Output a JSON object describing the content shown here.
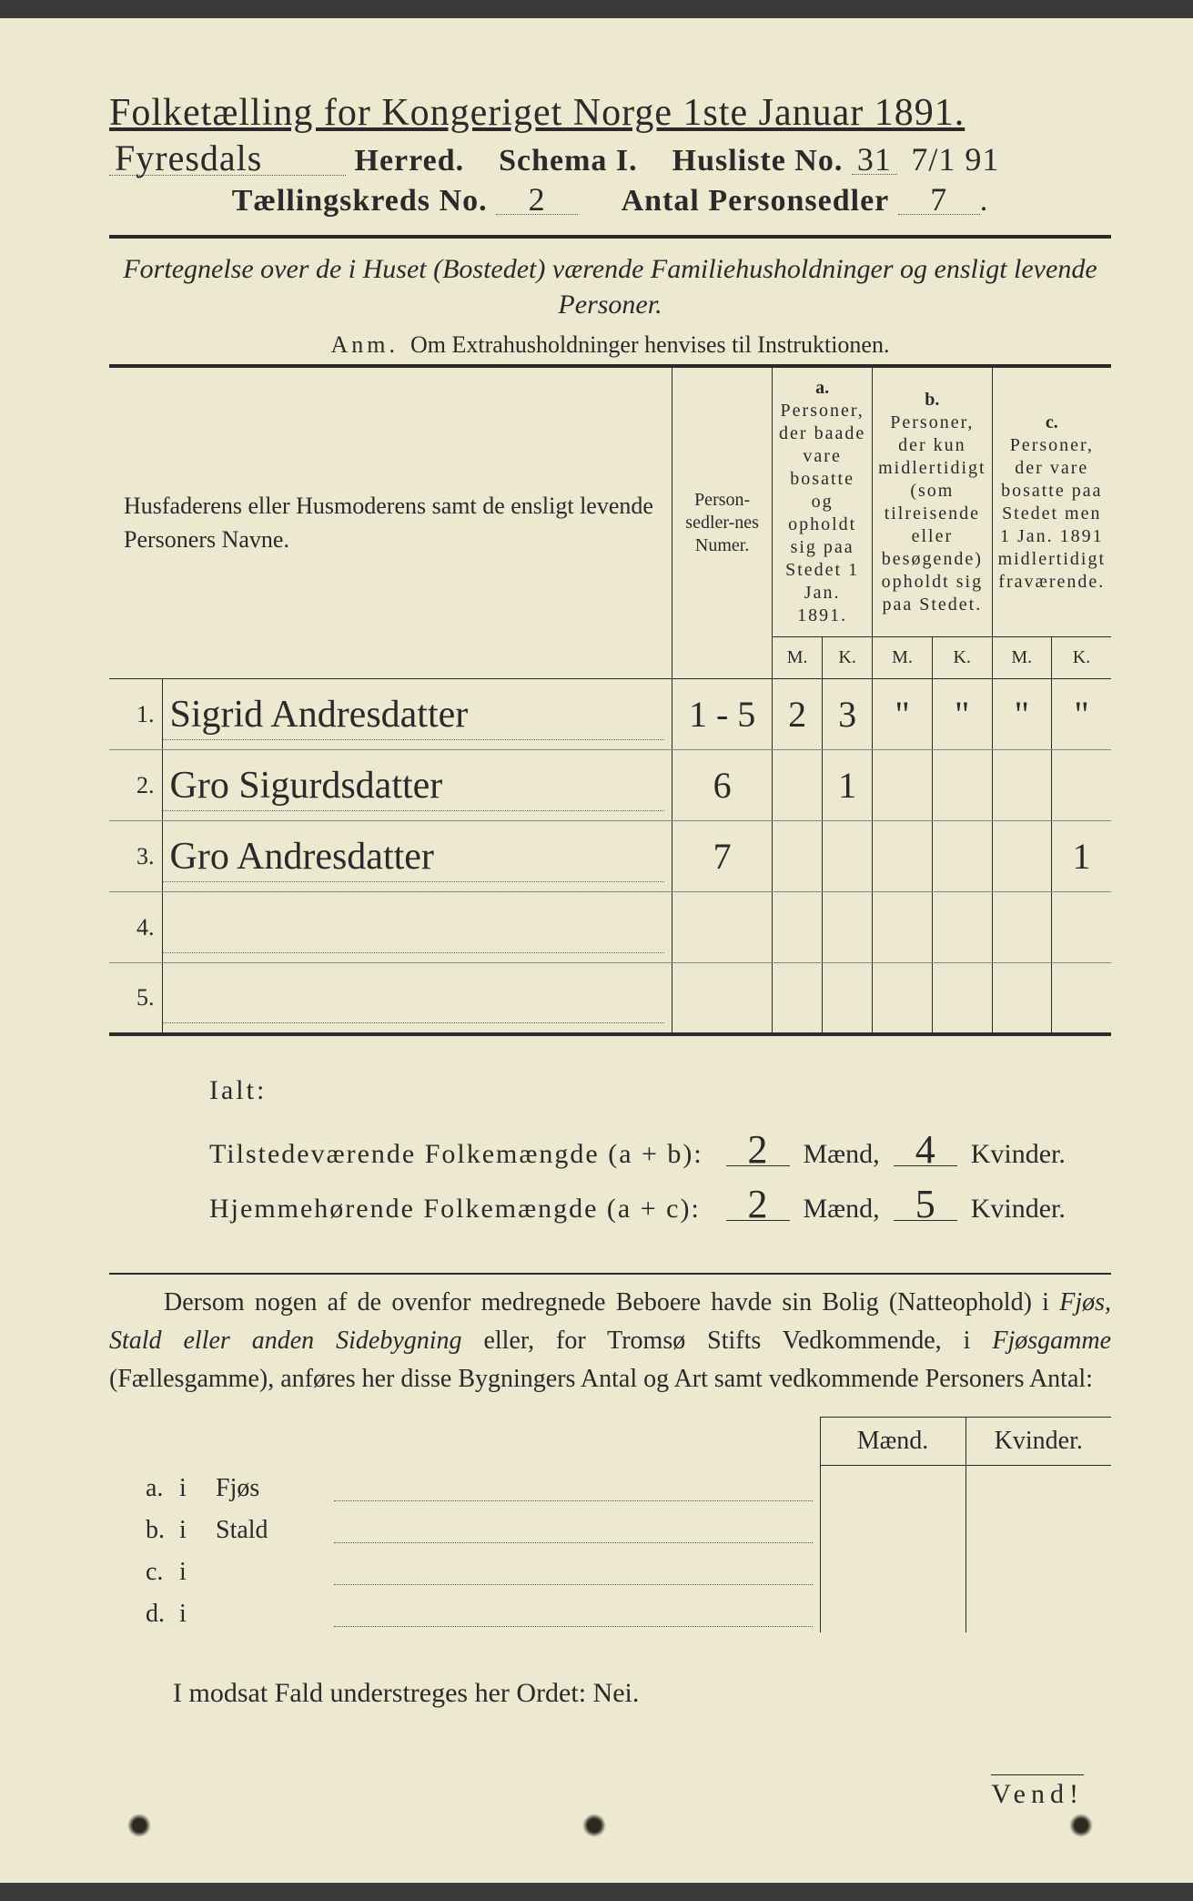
{
  "header": {
    "title_prefix": "Folketælling for Kongeriget Norge 1ste Januar 1891.",
    "herred_value": "Fyresdals",
    "herred_label": "Herred.",
    "schema_label": "Schema I.",
    "husliste_label": "Husliste No.",
    "husliste_value": "31",
    "husliste_date": "7/1 91",
    "kreds_label": "Tællingskreds No.",
    "kreds_value": "2",
    "antal_label": "Antal Personsedler",
    "antal_value": "7"
  },
  "subtitle": "Fortegnelse over de i Huset (Bostedet) værende Familiehusholdninger og ensligt levende Personer.",
  "anm": {
    "label": "Anm.",
    "text": "Om Extrahusholdninger henvises til Instruktionen."
  },
  "table": {
    "col_name": "Husfaderens eller Husmoderens samt de ensligt levende Personers Navne.",
    "col_num": "Person-sedler-nes Numer.",
    "col_a_label": "a.",
    "col_a": "Personer, der baade vare bosatte og opholdt sig paa Stedet 1 Jan. 1891.",
    "col_b_label": "b.",
    "col_b": "Personer, der kun midlertidigt (som tilreisende eller besøgende) opholdt sig paa Stedet.",
    "col_c_label": "c.",
    "col_c": "Personer, der vare bosatte paa Stedet men 1 Jan. 1891 midlertidigt fraværende.",
    "mk_m": "M.",
    "mk_k": "K.",
    "rows": [
      {
        "n": "1.",
        "name": "Sigrid Andresdatter",
        "num": "1 - 5",
        "a_m": "2",
        "a_k": "3",
        "b_m": "\"",
        "b_k": "\"",
        "c_m": "\"",
        "c_k": "\""
      },
      {
        "n": "2.",
        "name": "Gro Sigurdsdatter",
        "num": "6",
        "a_m": "",
        "a_k": "1",
        "b_m": "",
        "b_k": "",
        "c_m": "",
        "c_k": ""
      },
      {
        "n": "3.",
        "name": "Gro Andresdatter",
        "num": "7",
        "a_m": "",
        "a_k": "",
        "b_m": "",
        "b_k": "",
        "c_m": "",
        "c_k": "1"
      },
      {
        "n": "4.",
        "name": "",
        "num": "",
        "a_m": "",
        "a_k": "",
        "b_m": "",
        "b_k": "",
        "c_m": "",
        "c_k": ""
      },
      {
        "n": "5.",
        "name": "",
        "num": "",
        "a_m": "",
        "a_k": "",
        "b_m": "",
        "b_k": "",
        "c_m": "",
        "c_k": ""
      }
    ]
  },
  "totals": {
    "ialt_label": "Ialt:",
    "line1_label": "Tilstedeværende Folkemængde (a + b):",
    "line1_m": "2",
    "line1_k": "4",
    "line2_label": "Hjemmehørende Folkemængde (a + c):",
    "line2_m": "2",
    "line2_k": "5",
    "maend": "Mænd,",
    "kvinder": "Kvinder."
  },
  "paragraph": "Dersom nogen af de ovenfor medregnede Beboere havde sin Bolig (Natteophold) i Fjøs, Stald eller anden Sidebygning eller, for Tromsø Stifts Vedkommende, i Fjøsgamme (Fællesgamme), anføres her disse Bygningers Antal og Art samt vedkommende Personers Antal:",
  "subtable": {
    "head_m": "Mænd.",
    "head_k": "Kvinder.",
    "rows": [
      {
        "lab": "a.",
        "i": "i",
        "type": "Fjøs"
      },
      {
        "lab": "b.",
        "i": "i",
        "type": "Stald"
      },
      {
        "lab": "c.",
        "i": "i",
        "type": ""
      },
      {
        "lab": "d.",
        "i": "i",
        "type": ""
      }
    ]
  },
  "footer": "I modsat Fald understreges her Ordet: Nei.",
  "vend": "Vend!",
  "colors": {
    "paper": "#ede8d0",
    "ink": "#2a2a2a",
    "dotted": "#666666"
  }
}
